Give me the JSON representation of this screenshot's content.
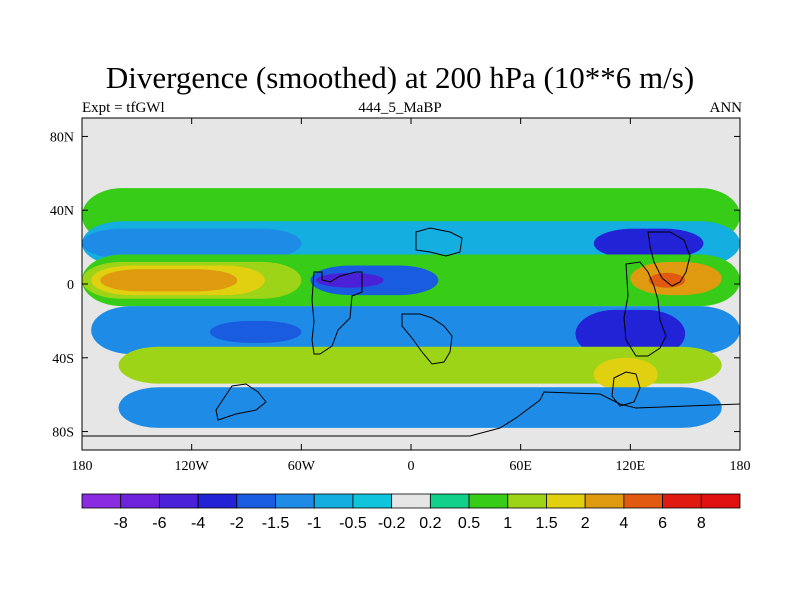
{
  "chart_data": {
    "type": "heatmap",
    "title": "Divergence (smoothed) at 200 hPa (10**6 m/s)",
    "subtitle_left": "Expt = tfGWl",
    "subtitle_center": "444_5_MaBP",
    "subtitle_right": "ANN",
    "x_range": [
      -180,
      180
    ],
    "y_range": [
      -90,
      90
    ],
    "x_ticks": [
      {
        "value": -180,
        "label": "180"
      },
      {
        "value": -120,
        "label": "120W"
      },
      {
        "value": -60,
        "label": "60W"
      },
      {
        "value": 0,
        "label": "0"
      },
      {
        "value": 60,
        "label": "60E"
      },
      {
        "value": 120,
        "label": "120E"
      },
      {
        "value": 180,
        "label": "180"
      }
    ],
    "y_ticks": [
      {
        "value": 80,
        "label": "80N"
      },
      {
        "value": 40,
        "label": "40N"
      },
      {
        "value": 0,
        "label": "0"
      },
      {
        "value": -40,
        "label": "40S"
      },
      {
        "value": -80,
        "label": "80S"
      }
    ],
    "colorbar": {
      "labels": [
        "-8",
        "-6",
        "-4",
        "-2",
        "-1.5",
        "-1",
        "-0.5",
        "-0.2",
        "0.2",
        "0.5",
        "1",
        "1.5",
        "2",
        "4",
        "6",
        "8"
      ],
      "colors": [
        "#8a2be2",
        "#6f22dc",
        "#4a20d8",
        "#2222d6",
        "#1a5ce0",
        "#1e8ce6",
        "#14aee0",
        "#10c4dc",
        "#e6e6e6",
        "#10d08a",
        "#36cc18",
        "#9ed418",
        "#e0d010",
        "#e09a10",
        "#e05a10",
        "#e01a10",
        "#e01010"
      ]
    },
    "regions": [
      {
        "level": "0.5",
        "lon": [
          -180,
          180
        ],
        "lat": [
          22,
          52
        ]
      },
      {
        "level": "-0.5",
        "lon": [
          -180,
          180
        ],
        "lat": [
          10,
          34
        ]
      },
      {
        "level": "-1",
        "lon": [
          -180,
          -60
        ],
        "lat": [
          14,
          30
        ]
      },
      {
        "level": "-2",
        "lon": [
          100,
          160
        ],
        "lat": [
          14,
          30
        ]
      },
      {
        "level": "0.5",
        "lon": [
          -180,
          180
        ],
        "lat": [
          -12,
          16
        ]
      },
      {
        "level": "1",
        "lon": [
          -180,
          -60
        ],
        "lat": [
          -8,
          12
        ]
      },
      {
        "level": "1.5",
        "lon": [
          -175,
          -80
        ],
        "lat": [
          -6,
          10
        ]
      },
      {
        "level": "2",
        "lon": [
          -170,
          -95
        ],
        "lat": [
          -4,
          8
        ]
      },
      {
        "level": "-1.5",
        "lon": [
          -55,
          15
        ],
        "lat": [
          -6,
          10
        ]
      },
      {
        "level": "-4",
        "lon": [
          -52,
          -15
        ],
        "lat": [
          -2,
          6
        ]
      },
      {
        "level": "2",
        "lon": [
          120,
          170
        ],
        "lat": [
          -6,
          12
        ]
      },
      {
        "level": "4",
        "lon": [
          130,
          150
        ],
        "lat": [
          -2,
          6
        ]
      },
      {
        "level": "-1",
        "lon": [
          -175,
          180
        ],
        "lat": [
          -38,
          -12
        ]
      },
      {
        "level": "-2",
        "lon": [
          90,
          150
        ],
        "lat": [
          -40,
          -14
        ]
      },
      {
        "level": "-1.5",
        "lon": [
          -110,
          -60
        ],
        "lat": [
          -32,
          -20
        ]
      },
      {
        "level": "1",
        "lon": [
          -160,
          170
        ],
        "lat": [
          -54,
          -34
        ]
      },
      {
        "level": "1.5",
        "lon": [
          100,
          135
        ],
        "lat": [
          -58,
          -40
        ]
      },
      {
        "level": "-1",
        "lon": [
          -160,
          170
        ],
        "lat": [
          -78,
          -56
        ]
      }
    ]
  }
}
